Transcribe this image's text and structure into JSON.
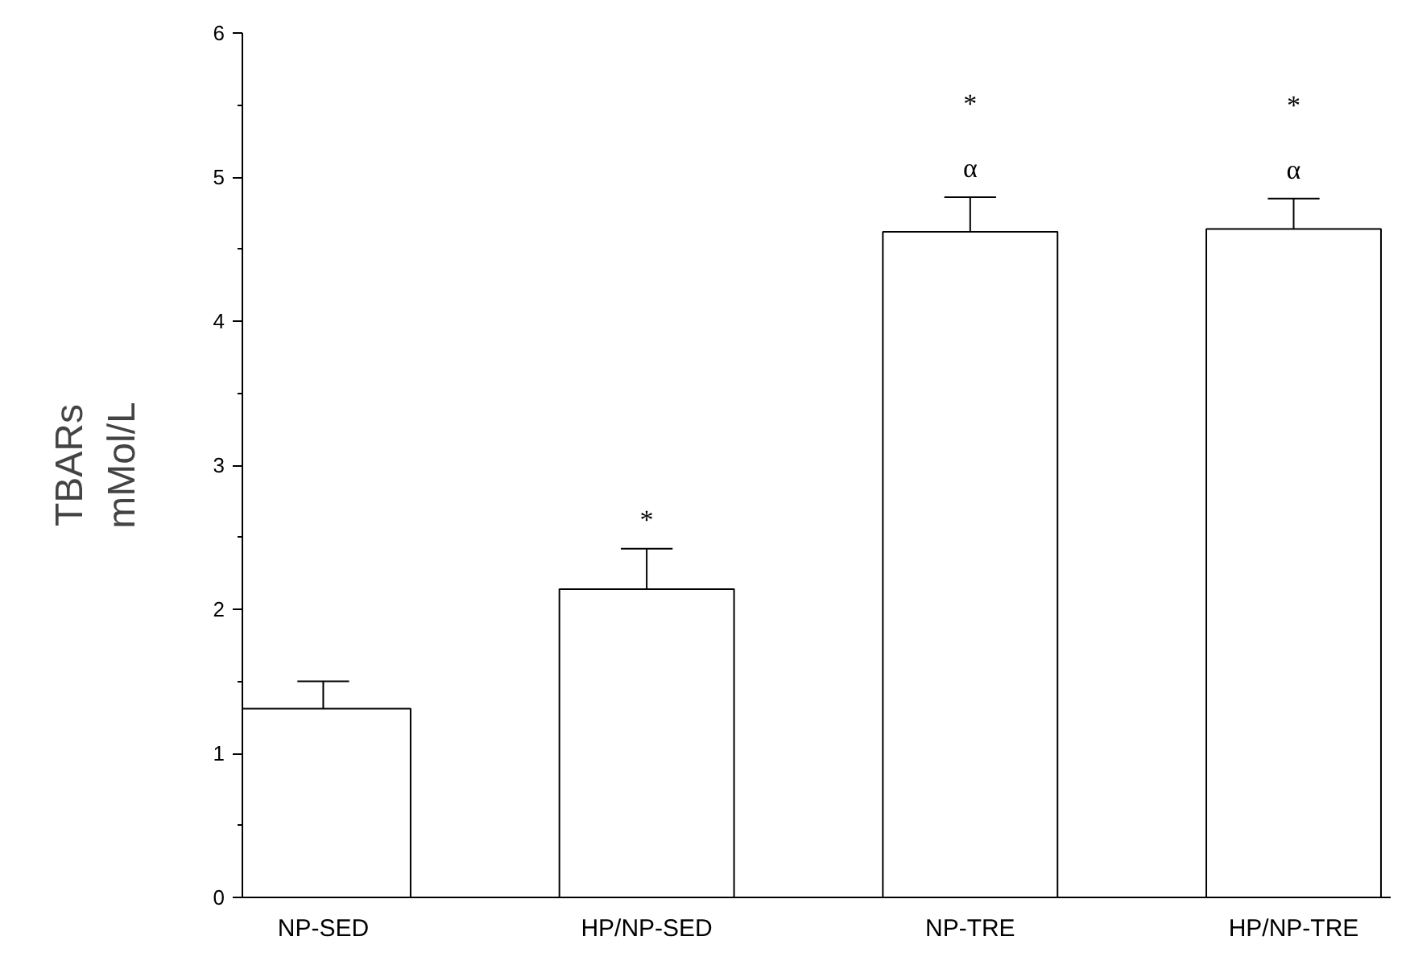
{
  "chart_data": {
    "type": "bar",
    "ylabel": "TBARs\nmMol/L",
    "categories": [
      "NP-SED",
      "HP/NP-SED",
      "NP-TRE",
      "HP/NP-TRE"
    ],
    "values": [
      1.31,
      2.14,
      4.62,
      4.64
    ],
    "errors": [
      [
        1.31,
        1.5
      ],
      [
        2.14,
        2.42
      ],
      [
        4.62,
        4.86
      ],
      [
        4.64,
        4.85
      ]
    ],
    "color": "#ffffff",
    "ylim": [
      0,
      6
    ],
    "yticks": [
      0,
      1,
      2,
      3,
      4,
      5,
      6
    ],
    "grid": false,
    "annotations": [
      "*",
      "α",
      "*",
      "α",
      "*"
    ]
  }
}
